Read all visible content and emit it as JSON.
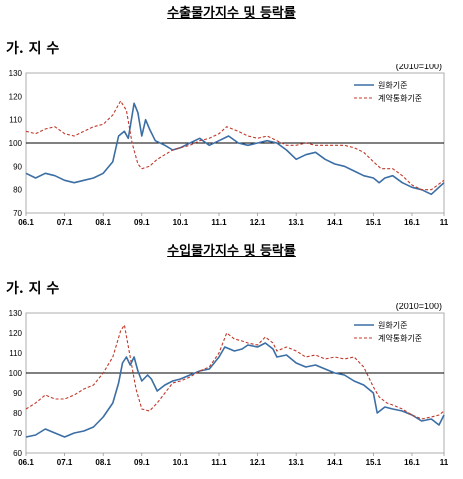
{
  "chart_data": [
    {
      "type": "line",
      "title": "수출물가지수 및 등락률",
      "section_label": "가. 지 수",
      "base_note": "(2010=100)",
      "xlabels": [
        "06.1",
        "07.1",
        "08.1",
        "09.1",
        "10.1",
        "11.1",
        "12.1",
        "13.1",
        "14.1",
        "15.1",
        "16.1",
        "11"
      ],
      "x_start": 2006.0,
      "x_end": 2016.83,
      "ylim": [
        70,
        130
      ],
      "yticks": [
        70,
        80,
        90,
        100,
        110,
        120,
        130
      ],
      "reference_line": 100,
      "grid": false,
      "legend_position": "top-right",
      "series": [
        {
          "name": "원화기준",
          "color": "#3b6ea5",
          "style": "solid",
          "points": [
            [
              2006.0,
              87
            ],
            [
              2006.25,
              85
            ],
            [
              2006.5,
              87
            ],
            [
              2006.75,
              86
            ],
            [
              2007.0,
              84
            ],
            [
              2007.25,
              83
            ],
            [
              2007.5,
              84
            ],
            [
              2007.75,
              85
            ],
            [
              2008.0,
              87
            ],
            [
              2008.25,
              92
            ],
            [
              2008.4,
              103
            ],
            [
              2008.55,
              105
            ],
            [
              2008.65,
              102
            ],
            [
              2008.8,
              117
            ],
            [
              2008.9,
              113
            ],
            [
              2009.0,
              103
            ],
            [
              2009.1,
              110
            ],
            [
              2009.2,
              106
            ],
            [
              2009.35,
              101
            ],
            [
              2009.6,
              99
            ],
            [
              2009.8,
              97
            ],
            [
              2010.0,
              98
            ],
            [
              2010.25,
              100
            ],
            [
              2010.5,
              102
            ],
            [
              2010.75,
              99
            ],
            [
              2011.0,
              101
            ],
            [
              2011.25,
              103
            ],
            [
              2011.5,
              100
            ],
            [
              2011.75,
              99
            ],
            [
              2012.0,
              100
            ],
            [
              2012.25,
              101
            ],
            [
              2012.5,
              100
            ],
            [
              2012.75,
              97
            ],
            [
              2013.0,
              93
            ],
            [
              2013.25,
              95
            ],
            [
              2013.5,
              96
            ],
            [
              2013.75,
              93
            ],
            [
              2014.0,
              91
            ],
            [
              2014.25,
              90
            ],
            [
              2014.5,
              88
            ],
            [
              2014.75,
              86
            ],
            [
              2015.0,
              85
            ],
            [
              2015.15,
              83
            ],
            [
              2015.3,
              85
            ],
            [
              2015.5,
              86
            ],
            [
              2015.75,
              83
            ],
            [
              2016.0,
              81
            ],
            [
              2016.25,
              80
            ],
            [
              2016.5,
              78
            ],
            [
              2016.83,
              83
            ]
          ]
        },
        {
          "name": "계약통화기준",
          "color": "#c0392b",
          "style": "dashed",
          "points": [
            [
              2006.0,
              105
            ],
            [
              2006.25,
              104
            ],
            [
              2006.5,
              106
            ],
            [
              2006.75,
              107
            ],
            [
              2007.0,
              104
            ],
            [
              2007.25,
              103
            ],
            [
              2007.5,
              105
            ],
            [
              2007.75,
              107
            ],
            [
              2008.0,
              108
            ],
            [
              2008.25,
              112
            ],
            [
              2008.45,
              118
            ],
            [
              2008.6,
              114
            ],
            [
              2008.75,
              100
            ],
            [
              2008.9,
              91
            ],
            [
              2009.0,
              89
            ],
            [
              2009.2,
              90
            ],
            [
              2009.4,
              93
            ],
            [
              2009.6,
              95
            ],
            [
              2009.8,
              97
            ],
            [
              2010.0,
              98
            ],
            [
              2010.25,
              99
            ],
            [
              2010.5,
              101
            ],
            [
              2010.75,
              102
            ],
            [
              2011.0,
              104
            ],
            [
              2011.2,
              107
            ],
            [
              2011.5,
              105
            ],
            [
              2011.75,
              103
            ],
            [
              2012.0,
              102
            ],
            [
              2012.25,
              103
            ],
            [
              2012.5,
              101
            ],
            [
              2012.75,
              99
            ],
            [
              2013.0,
              99
            ],
            [
              2013.25,
              100
            ],
            [
              2013.5,
              99
            ],
            [
              2013.75,
              99
            ],
            [
              2014.0,
              99
            ],
            [
              2014.25,
              99
            ],
            [
              2014.5,
              98
            ],
            [
              2014.75,
              96
            ],
            [
              2015.0,
              92
            ],
            [
              2015.2,
              89
            ],
            [
              2015.5,
              89
            ],
            [
              2015.75,
              86
            ],
            [
              2016.0,
              82
            ],
            [
              2016.25,
              80
            ],
            [
              2016.5,
              80
            ],
            [
              2016.83,
              84
            ]
          ]
        }
      ]
    },
    {
      "type": "line",
      "title": "수입물가지수 및 등락률",
      "section_label": "가. 지 수",
      "base_note": "(2010=100)",
      "xlabels": [
        "06.1",
        "07.1",
        "08.1",
        "09.1",
        "10.1",
        "11.1",
        "12.1",
        "13.1",
        "14.1",
        "15.1",
        "16.1",
        "11"
      ],
      "x_start": 2006.0,
      "x_end": 2016.83,
      "ylim": [
        60,
        130
      ],
      "yticks": [
        60,
        70,
        80,
        90,
        100,
        110,
        120,
        130
      ],
      "reference_line": 100,
      "grid": false,
      "legend_position": "top-right",
      "series": [
        {
          "name": "원화기준",
          "color": "#3b6ea5",
          "style": "solid",
          "points": [
            [
              2006.0,
              68
            ],
            [
              2006.25,
              69
            ],
            [
              2006.5,
              72
            ],
            [
              2006.75,
              70
            ],
            [
              2007.0,
              68
            ],
            [
              2007.25,
              70
            ],
            [
              2007.5,
              71
            ],
            [
              2007.75,
              73
            ],
            [
              2008.0,
              78
            ],
            [
              2008.25,
              85
            ],
            [
              2008.4,
              95
            ],
            [
              2008.5,
              105
            ],
            [
              2008.6,
              108
            ],
            [
              2008.7,
              104
            ],
            [
              2008.8,
              108
            ],
            [
              2008.9,
              101
            ],
            [
              2009.0,
              96
            ],
            [
              2009.15,
              99
            ],
            [
              2009.25,
              97
            ],
            [
              2009.4,
              91
            ],
            [
              2009.6,
              94
            ],
            [
              2009.8,
              96
            ],
            [
              2010.0,
              97
            ],
            [
              2010.25,
              99
            ],
            [
              2010.5,
              101
            ],
            [
              2010.75,
              102
            ],
            [
              2011.0,
              108
            ],
            [
              2011.15,
              113
            ],
            [
              2011.4,
              111
            ],
            [
              2011.6,
              112
            ],
            [
              2011.75,
              114
            ],
            [
              2012.0,
              113
            ],
            [
              2012.2,
              115
            ],
            [
              2012.4,
              112
            ],
            [
              2012.5,
              108
            ],
            [
              2012.75,
              109
            ],
            [
              2013.0,
              105
            ],
            [
              2013.25,
              103
            ],
            [
              2013.5,
              104
            ],
            [
              2013.75,
              102
            ],
            [
              2014.0,
              100
            ],
            [
              2014.25,
              99
            ],
            [
              2014.5,
              96
            ],
            [
              2014.75,
              94
            ],
            [
              2015.0,
              90
            ],
            [
              2015.1,
              80
            ],
            [
              2015.3,
              83
            ],
            [
              2015.5,
              82
            ],
            [
              2015.75,
              81
            ],
            [
              2016.0,
              79
            ],
            [
              2016.25,
              76
            ],
            [
              2016.5,
              77
            ],
            [
              2016.7,
              74
            ],
            [
              2016.83,
              79
            ]
          ]
        },
        {
          "name": "계약통화기준",
          "color": "#c0392b",
          "style": "dashed",
          "points": [
            [
              2006.0,
              82
            ],
            [
              2006.25,
              85
            ],
            [
              2006.5,
              89
            ],
            [
              2006.75,
              87
            ],
            [
              2007.0,
              87
            ],
            [
              2007.25,
              89
            ],
            [
              2007.5,
              92
            ],
            [
              2007.75,
              94
            ],
            [
              2008.0,
              100
            ],
            [
              2008.25,
              108
            ],
            [
              2008.45,
              121
            ],
            [
              2008.55,
              124
            ],
            [
              2008.7,
              108
            ],
            [
              2008.85,
              92
            ],
            [
              2009.0,
              82
            ],
            [
              2009.2,
              81
            ],
            [
              2009.4,
              85
            ],
            [
              2009.6,
              90
            ],
            [
              2009.8,
              95
            ],
            [
              2010.0,
              96
            ],
            [
              2010.25,
              98
            ],
            [
              2010.5,
              101
            ],
            [
              2010.75,
              103
            ],
            [
              2011.0,
              110
            ],
            [
              2011.2,
              120
            ],
            [
              2011.4,
              117
            ],
            [
              2011.6,
              116
            ],
            [
              2011.75,
              115
            ],
            [
              2012.0,
              114
            ],
            [
              2012.2,
              118
            ],
            [
              2012.4,
              115
            ],
            [
              2012.5,
              111
            ],
            [
              2012.75,
              113
            ],
            [
              2013.0,
              111
            ],
            [
              2013.25,
              108
            ],
            [
              2013.5,
              109
            ],
            [
              2013.75,
              107
            ],
            [
              2014.0,
              108
            ],
            [
              2014.25,
              107
            ],
            [
              2014.5,
              108
            ],
            [
              2014.75,
              103
            ],
            [
              2015.0,
              93
            ],
            [
              2015.15,
              88
            ],
            [
              2015.35,
              85
            ],
            [
              2015.5,
              84
            ],
            [
              2015.75,
              82
            ],
            [
              2016.0,
              79
            ],
            [
              2016.25,
              77
            ],
            [
              2016.5,
              78
            ],
            [
              2016.7,
              79
            ],
            [
              2016.83,
              81
            ]
          ]
        }
      ]
    }
  ]
}
